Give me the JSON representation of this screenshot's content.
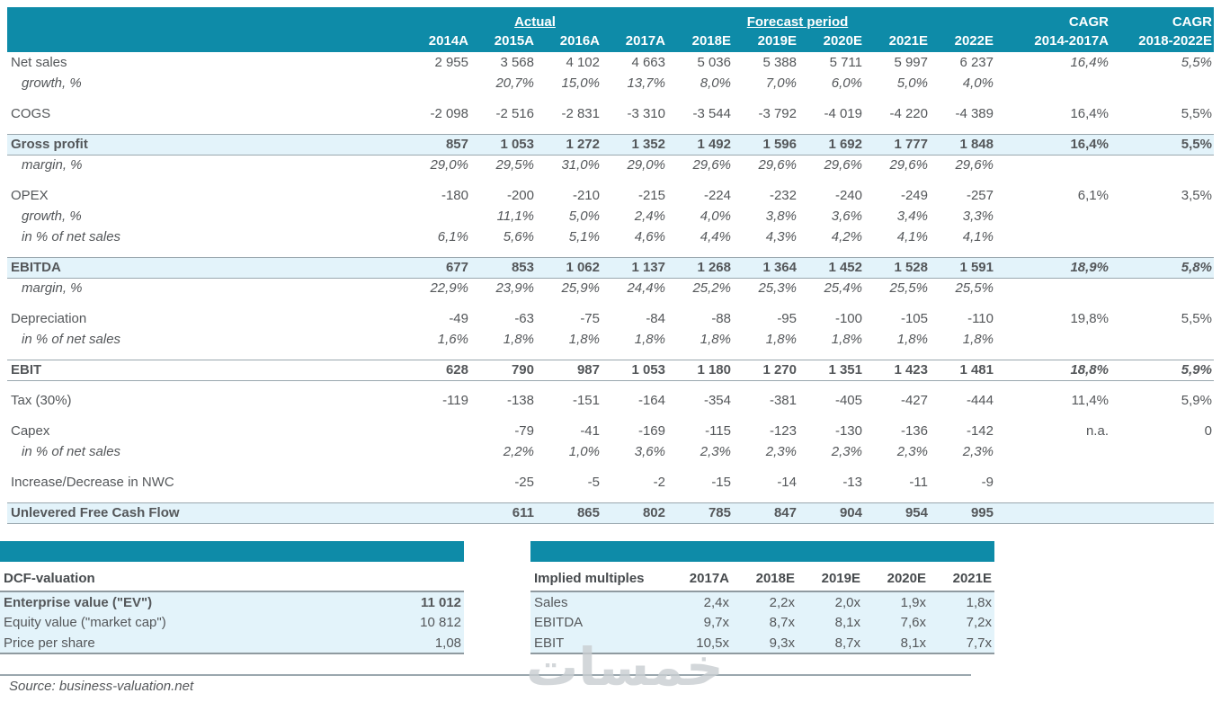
{
  "colors": {
    "teal": "#0e8ba8",
    "row_highlight": "#e3f3fa",
    "line_gray": "#9aa7ae",
    "text_gray": "#54575a",
    "watermark_gray": "#c9ced1"
  },
  "header": {
    "actual_label": "Actual",
    "forecast_label": "Forecast period",
    "columns": [
      "2014A",
      "2015A",
      "2016A",
      "2017A",
      "2018E",
      "2019E",
      "2020E",
      "2021E",
      "2022E"
    ],
    "cagr1": {
      "line1": "CAGR",
      "line2": "2014-2017A"
    },
    "cagr2": {
      "line1": "CAGR",
      "line2": "2018-2022E"
    }
  },
  "main_table": {
    "rows": [
      {
        "label": "Net sales",
        "style": "normal",
        "values": [
          "2 955",
          "3 568",
          "4 102",
          "4 663",
          "5 036",
          "5 388",
          "5 711",
          "5 997",
          "6 237"
        ],
        "cagr1": "16,4%",
        "cagr2": "5,5%",
        "cagr_style": "italic"
      },
      {
        "label": "growth, %",
        "style": "sub",
        "values": [
          "",
          "20,7%",
          "15,0%",
          "13,7%",
          "8,0%",
          "7,0%",
          "6,0%",
          "5,0%",
          "4,0%"
        ],
        "cagr1": "",
        "cagr2": "",
        "cagr_style": "normal"
      },
      {
        "spacer": true
      },
      {
        "label": "COGS",
        "style": "normal",
        "values": [
          "-2 098",
          "-2 516",
          "-2 831",
          "-3 310",
          "-3 544",
          "-3 792",
          "-4 019",
          "-4 220",
          "-4 389"
        ],
        "cagr1": "16,4%",
        "cagr2": "5,5%",
        "cagr_style": "normal"
      },
      {
        "spacer": true
      },
      {
        "label": "Gross profit",
        "style": "highlight",
        "values": [
          "857",
          "1 053",
          "1 272",
          "1 352",
          "1 492",
          "1 596",
          "1 692",
          "1 777",
          "1 848"
        ],
        "cagr1": "16,4%",
        "cagr2": "5,5%",
        "cagr_style": "bold"
      },
      {
        "label": "margin, %",
        "style": "sub",
        "values": [
          "29,0%",
          "29,5%",
          "31,0%",
          "29,0%",
          "29,6%",
          "29,6%",
          "29,6%",
          "29,6%",
          "29,6%"
        ],
        "cagr1": "",
        "cagr2": "",
        "cagr_style": "normal"
      },
      {
        "spacer": true
      },
      {
        "label": "OPEX",
        "style": "normal",
        "values": [
          "-180",
          "-200",
          "-210",
          "-215",
          "-224",
          "-232",
          "-240",
          "-249",
          "-257"
        ],
        "cagr1": "6,1%",
        "cagr2": "3,5%",
        "cagr_style": "normal"
      },
      {
        "label": "growth, %",
        "style": "sub",
        "values": [
          "",
          "11,1%",
          "5,0%",
          "2,4%",
          "4,0%",
          "3,8%",
          "3,6%",
          "3,4%",
          "3,3%"
        ],
        "cagr1": "",
        "cagr2": "",
        "cagr_style": "normal"
      },
      {
        "label": "in % of net sales",
        "style": "sub",
        "values": [
          "6,1%",
          "5,6%",
          "5,1%",
          "4,6%",
          "4,4%",
          "4,3%",
          "4,2%",
          "4,1%",
          "4,1%"
        ],
        "cagr1": "",
        "cagr2": "",
        "cagr_style": "normal"
      },
      {
        "spacer": true
      },
      {
        "label": "EBITDA",
        "style": "highlight",
        "values": [
          "677",
          "853",
          "1 062",
          "1 137",
          "1 268",
          "1 364",
          "1 452",
          "1 528",
          "1 591"
        ],
        "cagr1": "18,9%",
        "cagr2": "5,8%",
        "cagr_style": "bolditalic"
      },
      {
        "label": "margin, %",
        "style": "sub",
        "values": [
          "22,9%",
          "23,9%",
          "25,9%",
          "24,4%",
          "25,2%",
          "25,3%",
          "25,4%",
          "25,5%",
          "25,5%"
        ],
        "cagr1": "",
        "cagr2": "",
        "cagr_style": "normal"
      },
      {
        "spacer": true
      },
      {
        "label": "Depreciation",
        "style": "normal",
        "values": [
          "-49",
          "-63",
          "-75",
          "-84",
          "-88",
          "-95",
          "-100",
          "-105",
          "-110"
        ],
        "cagr1": "19,8%",
        "cagr2": "5,5%",
        "cagr_style": "normal"
      },
      {
        "label": "in % of net sales",
        "style": "sub",
        "values": [
          "1,6%",
          "1,8%",
          "1,8%",
          "1,8%",
          "1,8%",
          "1,8%",
          "1,8%",
          "1,8%",
          "1,8%"
        ],
        "cagr1": "",
        "cagr2": "",
        "cagr_style": "normal"
      },
      {
        "spacer": true
      },
      {
        "label": "EBIT",
        "style": "highlight_white",
        "values": [
          "628",
          "790",
          "987",
          "1 053",
          "1 180",
          "1 270",
          "1 351",
          "1 423",
          "1 481"
        ],
        "cagr1": "18,8%",
        "cagr2": "5,9%",
        "cagr_style": "bolditalic"
      },
      {
        "spacer": true
      },
      {
        "label": "Tax (30%)",
        "style": "normal",
        "values": [
          "-119",
          "-138",
          "-151",
          "-164",
          "-354",
          "-381",
          "-405",
          "-427",
          "-444"
        ],
        "cagr1": "11,4%",
        "cagr2": "5,9%",
        "cagr_style": "normal"
      },
      {
        "spacer": true
      },
      {
        "label": "Capex",
        "style": "normal",
        "values": [
          "",
          "-79",
          "-41",
          "-169",
          "-115",
          "-123",
          "-130",
          "-136",
          "-142"
        ],
        "cagr1": "n.a.",
        "cagr2": "0",
        "cagr_style": "normal"
      },
      {
        "label": "in % of net sales",
        "style": "sub",
        "values": [
          "",
          "2,2%",
          "1,0%",
          "3,6%",
          "2,3%",
          "2,3%",
          "2,3%",
          "2,3%",
          "2,3%"
        ],
        "cagr1": "",
        "cagr2": "",
        "cagr_style": "normal"
      },
      {
        "spacer": true
      },
      {
        "label": "Increase/Decrease in NWC",
        "style": "normal",
        "values": [
          "",
          "-25",
          "-5",
          "-2",
          "-15",
          "-14",
          "-13",
          "-11",
          "-9"
        ],
        "cagr1": "",
        "cagr2": "",
        "cagr_style": "normal"
      },
      {
        "spacer": true
      },
      {
        "label": "Unlevered Free Cash Flow",
        "style": "highlight",
        "values": [
          "",
          "611",
          "865",
          "802",
          "785",
          "847",
          "904",
          "954",
          "995"
        ],
        "cagr1": "",
        "cagr2": "",
        "cagr_style": "normal"
      }
    ]
  },
  "dcf": {
    "title": "DCF-valuation",
    "rows": [
      {
        "label": "Enterprise value (\"EV\")",
        "value": "11 012",
        "bold": true
      },
      {
        "label": "Equity value (\"market cap\")",
        "value": "10 812",
        "bold": false
      },
      {
        "label": "Price per share",
        "value": "1,08",
        "bold": false
      }
    ]
  },
  "implied": {
    "title": "Implied multiples",
    "columns": [
      "2017A",
      "2018E",
      "2019E",
      "2020E",
      "2021E"
    ],
    "rows": [
      {
        "label": "Sales",
        "values": [
          "2,4x",
          "2,2x",
          "2,0x",
          "1,9x",
          "1,8x"
        ]
      },
      {
        "label": "EBITDA",
        "values": [
          "9,7x",
          "8,7x",
          "8,1x",
          "7,6x",
          "7,2x"
        ]
      },
      {
        "label": "EBIT",
        "values": [
          "10,5x",
          "9,3x",
          "8,7x",
          "8,1x",
          "7,7x"
        ]
      }
    ]
  },
  "footer": {
    "source": "Source: business-valuation.net"
  },
  "watermark": {
    "text": "خمسات"
  }
}
